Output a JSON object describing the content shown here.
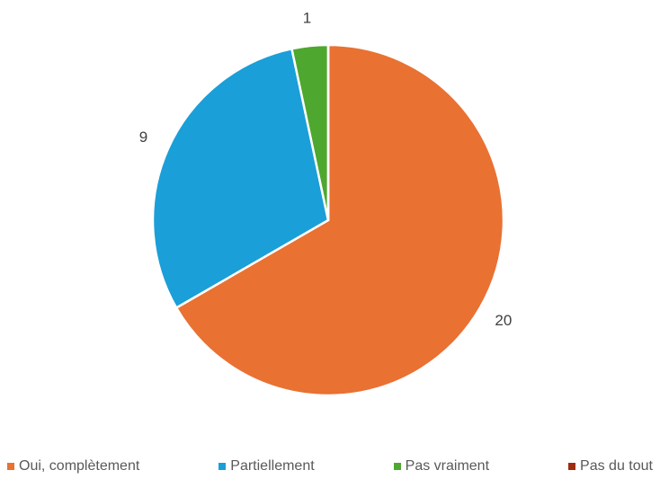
{
  "chart_data": {
    "type": "pie",
    "categories": [
      "Oui, complètement",
      "Partiellement",
      "Pas vraiment",
      "Pas du tout"
    ],
    "values": [
      20,
      9,
      1,
      0
    ],
    "colors": [
      "#e97132",
      "#1a9fd8",
      "#4ea72e",
      "#a02b0f"
    ],
    "legend": "bottom"
  }
}
